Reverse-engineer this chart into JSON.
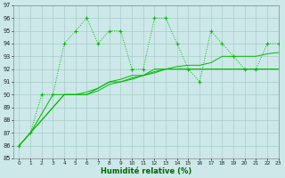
{
  "x": [
    0,
    1,
    2,
    3,
    4,
    5,
    6,
    7,
    8,
    9,
    10,
    11,
    12,
    13,
    14,
    15,
    16,
    17,
    18,
    19,
    20,
    21,
    22,
    23
  ],
  "y_jagged": [
    86,
    87,
    90,
    90,
    94,
    95,
    96,
    94,
    95,
    95,
    92,
    92,
    96,
    96,
    94,
    92,
    91,
    95,
    94,
    93,
    92,
    92,
    94,
    94
  ],
  "y_line1": [
    86,
    87,
    88.5,
    90,
    90,
    90,
    90,
    90.5,
    91,
    91,
    91.3,
    91.5,
    91.7,
    92,
    92,
    92,
    92,
    92,
    92,
    92,
    92,
    92,
    92,
    92
  ],
  "y_line2": [
    86,
    87,
    88,
    89,
    90,
    90,
    90.2,
    90.5,
    91,
    91.2,
    91.5,
    91.5,
    92,
    92,
    92.2,
    92.3,
    92.3,
    92.5,
    93,
    93,
    93,
    93,
    93.2,
    93.3
  ],
  "y_line3": [
    86,
    87,
    88,
    89,
    90,
    90,
    90,
    90.3,
    90.8,
    91,
    91.2,
    91.5,
    91.8,
    92,
    92,
    92,
    92,
    92,
    92,
    92,
    92,
    92,
    92,
    92
  ],
  "background_color": "#cce8e8",
  "grid_color": "#aacccc",
  "line_color": "#00bb00",
  "ylim": [
    85,
    97
  ],
  "xlim": [
    -0.5,
    23
  ],
  "xlabel": "Humidité relative (%)",
  "yticks": [
    85,
    86,
    87,
    88,
    89,
    90,
    91,
    92,
    93,
    94,
    95,
    96,
    97
  ],
  "xticks": [
    0,
    1,
    2,
    3,
    4,
    5,
    6,
    7,
    8,
    9,
    10,
    11,
    12,
    13,
    14,
    15,
    16,
    17,
    18,
    19,
    20,
    21,
    22,
    23
  ]
}
